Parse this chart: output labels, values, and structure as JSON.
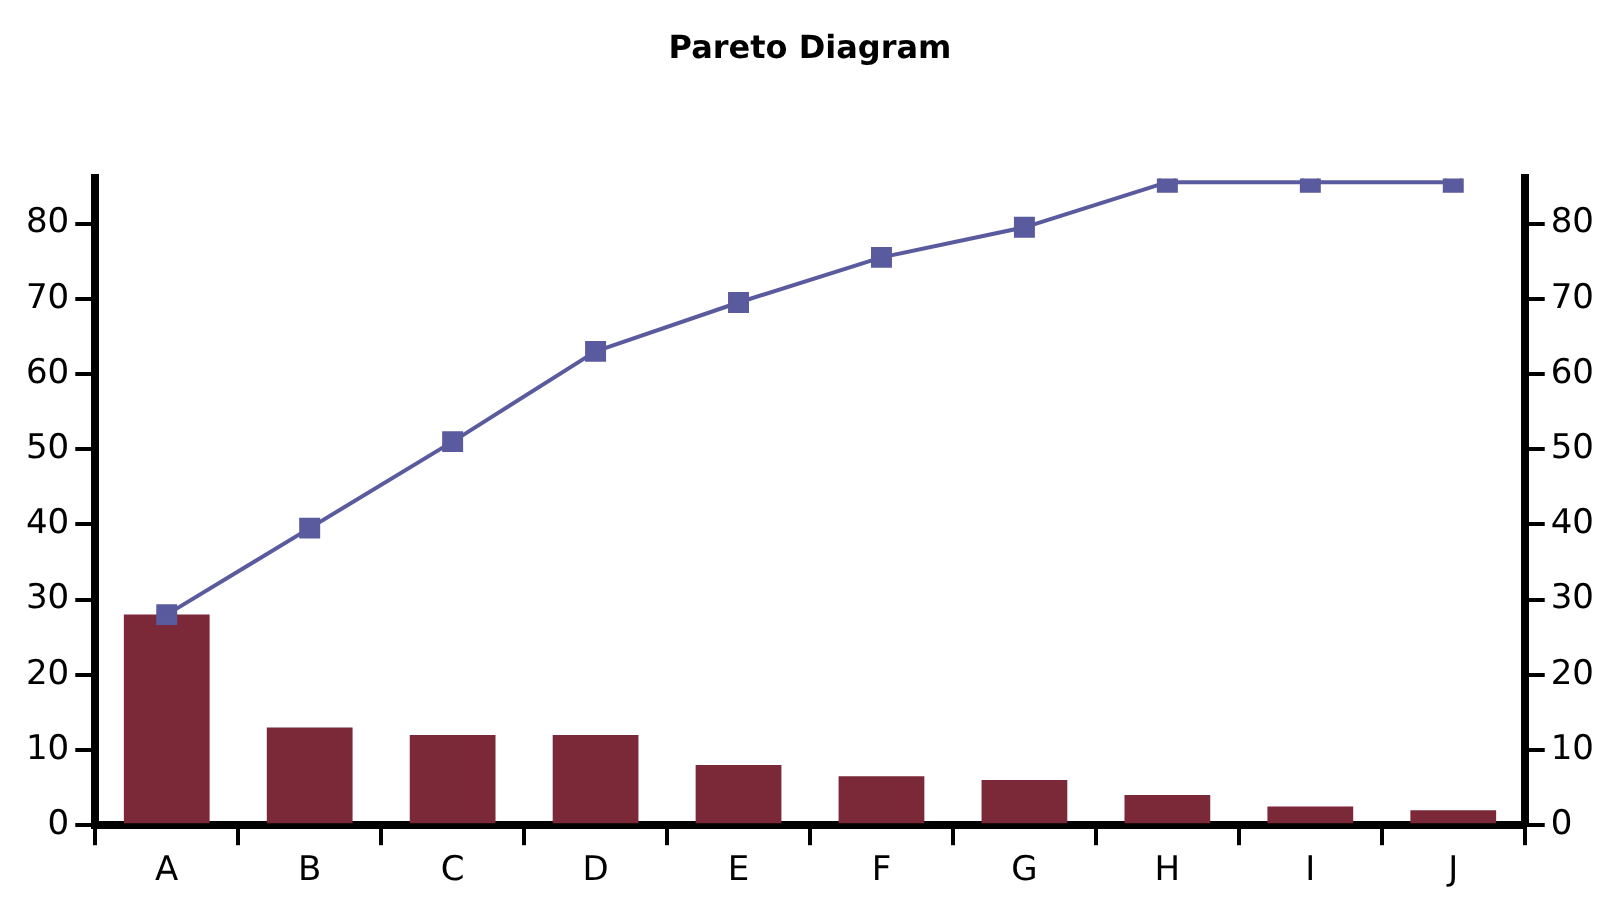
{
  "chart_data": {
    "type": "bar",
    "title": "Pareto Diagram",
    "categories": [
      "A",
      "B",
      "C",
      "D",
      "E",
      "F",
      "G",
      "H",
      "I",
      "J"
    ],
    "series": [
      {
        "color": "#7b2838",
        "values": [
          28,
          13,
          12,
          12,
          8,
          6.5,
          6,
          4,
          2.5,
          2
        ]
      },
      {
        "type": "line",
        "axis": "y2",
        "color": "#5a5a9e",
        "values": [
          28,
          39.5,
          51,
          63,
          69.5,
          75.5,
          79.5,
          85.5,
          85.5,
          85.5
        ]
      }
    ],
    "ylim": [
      0,
      86
    ],
    "yticks": [
      0,
      10,
      20,
      30,
      40,
      50,
      60,
      70,
      80
    ],
    "y2lim": [
      0,
      86
    ],
    "y2ticks": [
      0,
      10,
      20,
      30,
      40,
      50,
      60,
      70,
      80
    ],
    "marker": "square",
    "line_style": "solid",
    "grid": false,
    "legend": false
  }
}
